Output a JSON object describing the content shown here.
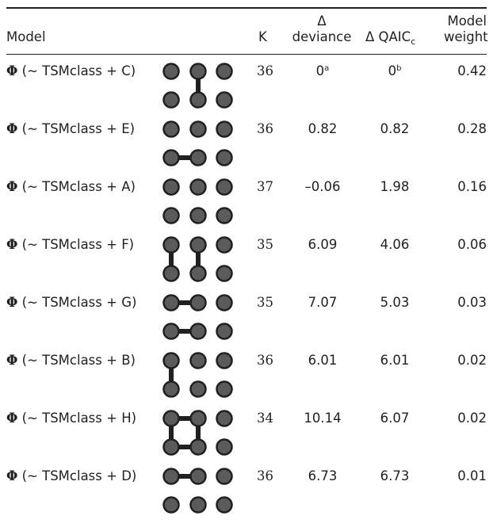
{
  "table": {
    "headers": {
      "model": "Model",
      "k": "K",
      "delta_deviance": [
        "Δ",
        "deviance"
      ],
      "delta_qaic": [
        "Δ QAIC",
        "c"
      ],
      "model_weight": [
        "Model",
        "weight"
      ]
    },
    "rows": [
      {
        "phi": "Φ",
        "formula": " (~ TSMclass + C)",
        "k": "36",
        "delta_deviance": "0",
        "delta_deviance_note": "a",
        "delta_qaic": "0",
        "delta_qaic_note": "b",
        "weight": "0.42",
        "diagram": {
          "links": [
            [
              1,
              4
            ]
          ]
        }
      },
      {
        "phi": "Φ",
        "formula": " (~ TSMclass + E)",
        "k": "36",
        "delta_deviance": "0.82",
        "delta_qaic": "0.82",
        "weight": "0.28",
        "diagram": {
          "links": [
            [
              3,
              4
            ]
          ]
        }
      },
      {
        "phi": "Φ",
        "formula": " (~ TSMclass + A)",
        "k": "37",
        "delta_deviance": "–0.06",
        "delta_qaic": "1.98",
        "weight": "0.16",
        "diagram": {
          "links": []
        }
      },
      {
        "phi": "Φ",
        "formula": " (~ TSMclass + F)",
        "k": "35",
        "delta_deviance": "6.09",
        "delta_qaic": "4.06",
        "weight": "0.06",
        "diagram": {
          "links": [
            [
              0,
              3
            ],
            [
              1,
              4
            ]
          ]
        }
      },
      {
        "phi": "Φ",
        "formula": " (~ TSMclass + G)",
        "k": "35",
        "delta_deviance": "7.07",
        "delta_qaic": "5.03",
        "weight": "0.03",
        "diagram": {
          "links": [
            [
              0,
              1
            ],
            [
              3,
              4
            ]
          ]
        }
      },
      {
        "phi": "Φ",
        "formula": " (~ TSMclass + B)",
        "k": "36",
        "delta_deviance": "6.01",
        "delta_qaic": "6.01",
        "weight": "0.02",
        "diagram": {
          "links": [
            [
              0,
              3
            ]
          ]
        }
      },
      {
        "phi": "Φ",
        "formula": " (~ TSMclass + H)",
        "k": "34",
        "delta_deviance": "10.14",
        "delta_qaic": "6.07",
        "weight": "0.02",
        "diagram": {
          "links": [
            [
              0,
              1
            ],
            [
              3,
              4
            ],
            [
              0,
              3
            ],
            [
              1,
              4
            ]
          ]
        }
      },
      {
        "phi": "Φ",
        "formula": " (~ TSMclass + D)",
        "k": "36",
        "delta_deviance": "6.73",
        "delta_qaic": "6.73",
        "weight": "0.01",
        "diagram": {
          "links": [
            [
              0,
              1
            ]
          ]
        }
      }
    ],
    "colors": {
      "node_fill": "#5b5b5b",
      "node_stroke": "#231f20",
      "link": "#231f20",
      "text": "#231f20"
    }
  }
}
